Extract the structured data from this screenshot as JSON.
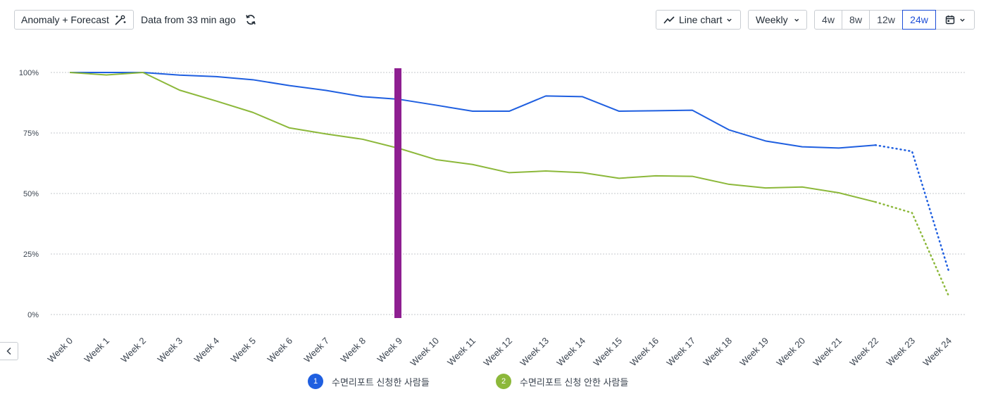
{
  "toolbar": {
    "anomaly_label": "Anomaly + Forecast",
    "data_age": "Data from 33 min ago",
    "chart_type_label": "Line chart",
    "interval_label": "Weekly",
    "ranges": [
      "4w",
      "8w",
      "12w",
      "24w"
    ],
    "active_range": "24w"
  },
  "legend": {
    "items": [
      {
        "index": "1",
        "label": "수면리포트 신청한 사람들",
        "color": "#1f5fe0"
      },
      {
        "index": "2",
        "label": "수면리포트 신청 안한 사람들",
        "color": "#8cb83a"
      }
    ]
  },
  "marker_color": "#8e1f91",
  "chart_data": {
    "type": "line",
    "categories": [
      "Week 0",
      "Week 1",
      "Week 2",
      "Week 3",
      "Week 4",
      "Week 5",
      "Week 6",
      "Week 7",
      "Week 8",
      "Week 9",
      "Week 10",
      "Week 11",
      "Week 12",
      "Week 13",
      "Week 14",
      "Week 15",
      "Week 16",
      "Week 17",
      "Week 18",
      "Week 19",
      "Week 20",
      "Week 21",
      "Week 22",
      "Week 23",
      "Week 24"
    ],
    "y_ticks": [
      "100%",
      "75%",
      "50%",
      "25%",
      "0%"
    ],
    "ylim": [
      0,
      100
    ],
    "marker_category": "Week 9",
    "forecast_from": "Week 22",
    "series": [
      {
        "name": "수면리포트 신청한 사람들",
        "color": "#1f5fe0",
        "values": [
          100,
          100,
          100,
          98.9,
          98.3,
          97.0,
          94.6,
          92.6,
          90.0,
          88.9,
          86.5,
          84.0,
          84.0,
          90.3,
          90.0,
          84.0,
          84.2,
          84.4,
          76.3,
          71.7,
          69.3,
          68.8,
          70.0,
          67.4,
          18.0
        ]
      },
      {
        "name": "수면리포트 신청 안한 사람들",
        "color": "#8cb83a",
        "values": [
          100,
          99.0,
          100,
          92.7,
          88.2,
          83.5,
          77.1,
          74.6,
          72.4,
          68.6,
          64.0,
          62.0,
          58.6,
          59.3,
          58.6,
          56.3,
          57.3,
          57.1,
          53.8,
          52.3,
          52.7,
          50.3,
          46.5,
          42.0,
          7.7
        ]
      }
    ],
    "grid": true
  }
}
